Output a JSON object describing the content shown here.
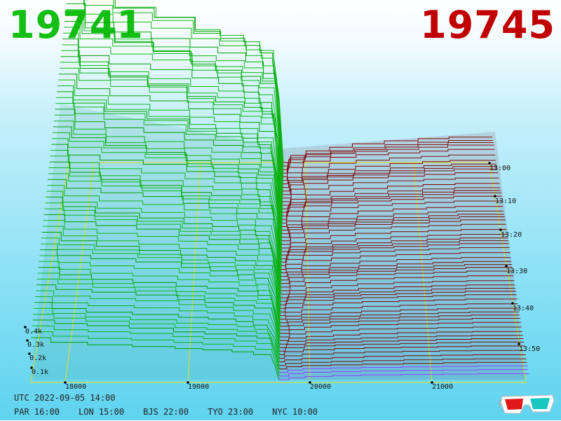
{
  "header": {
    "bid_price": "19741",
    "ask_price": "19745",
    "bid_color": "#12bf12",
    "ask_color": "#c00000"
  },
  "footer": {
    "utc": "UTC 2022-09-05 14:00",
    "cities": [
      "PAR 16:00",
      "LON 15:00",
      "BJS 22:00",
      "TYO 23:00",
      "NYC 10:00"
    ]
  },
  "icons": {
    "corner": "3d-glasses-icon"
  },
  "chart_data": {
    "type": "area",
    "title": "",
    "xlabel": "",
    "ylabel": "",
    "x_ticks": [
      "18000",
      "19000",
      "20000",
      "21000"
    ],
    "depth_ticks": [
      "0.1k",
      "0.2k",
      "0.3k",
      "0.4k"
    ],
    "time_ticks": [
      "13:00",
      "13:10",
      "13:20",
      "13:30",
      "13:40",
      "13:50"
    ],
    "series": [
      {
        "side": "bid",
        "color": "#00b000"
      },
      {
        "side": "ask",
        "color": "#a00000"
      }
    ],
    "grid": true
  }
}
